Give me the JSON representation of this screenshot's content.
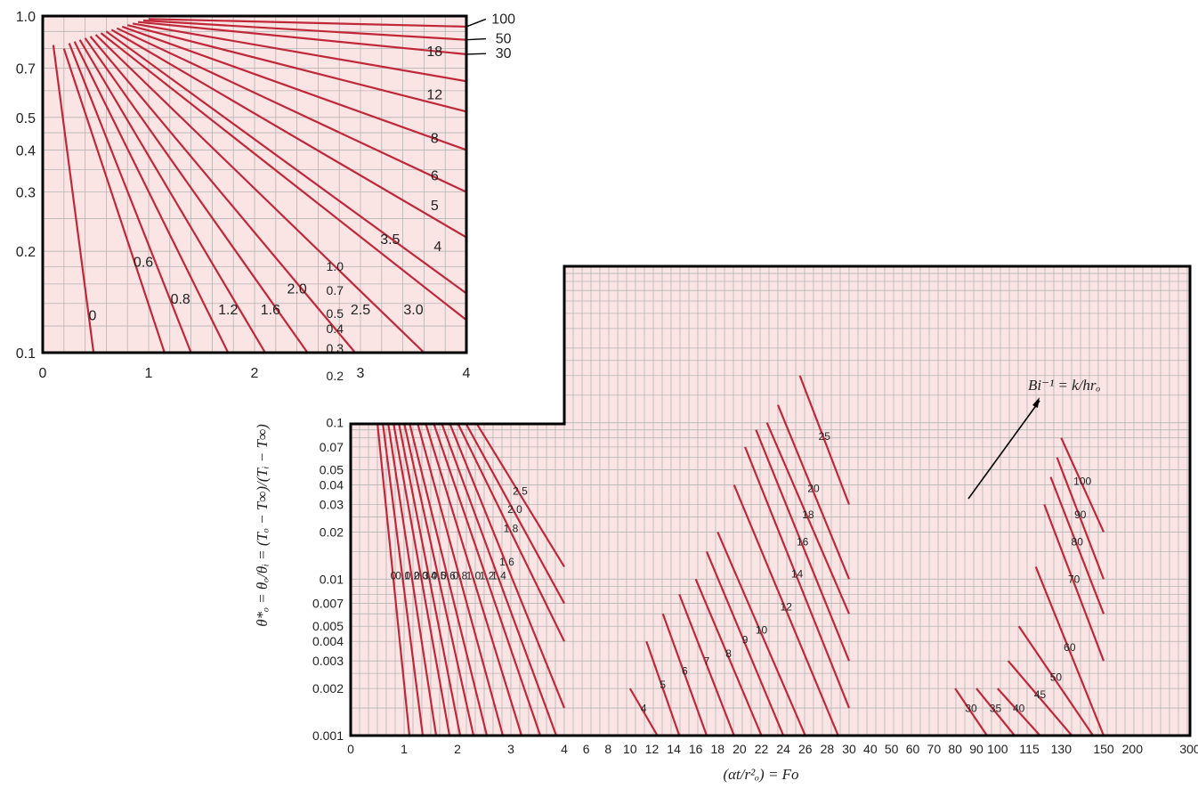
{
  "chart_data": [
    {
      "type": "line",
      "panel": "inset",
      "title": "",
      "xlabel": "",
      "ylabel": "",
      "xlim": [
        0,
        4
      ],
      "ylim": [
        0.1,
        1.0
      ],
      "yscale": "log",
      "x_ticks": [
        "0",
        "1",
        "2",
        "3",
        "4"
      ],
      "y_ticks": [
        "1.0",
        "0.7",
        "0.5",
        "0.4",
        "0.3",
        "0.2",
        "0.1"
      ],
      "y_tick_values": [
        1.0,
        0.7,
        0.5,
        0.4,
        0.3,
        0.2,
        0.1
      ],
      "grid": true,
      "background": "#fbe4e4",
      "line_color": "#c0283a",
      "series": [
        {
          "name": "0",
          "x": [
            0.1,
            0.48
          ],
          "y": [
            0.82,
            0.1
          ],
          "label_x": 0.47,
          "label_y": 0.125
        },
        {
          "name": "0.6",
          "x": [
            0.2,
            1.15
          ],
          "y": [
            0.8,
            0.1
          ],
          "label_x": 0.95,
          "label_y": 0.18
        },
        {
          "name": "0.8",
          "x": [
            0.25,
            1.4
          ],
          "y": [
            0.83,
            0.1
          ],
          "label_x": 1.3,
          "label_y": 0.14
        },
        {
          "name": "1.2",
          "x": [
            0.3,
            1.75
          ],
          "y": [
            0.84,
            0.1
          ],
          "label_x": 1.75,
          "label_y": 0.13
        },
        {
          "name": "1.6",
          "x": [
            0.35,
            2.1
          ],
          "y": [
            0.85,
            0.1
          ],
          "label_x": 2.15,
          "label_y": 0.13
        },
        {
          "name": "2.0",
          "x": [
            0.4,
            2.5
          ],
          "y": [
            0.86,
            0.1
          ],
          "label_x": 2.4,
          "label_y": 0.15
        },
        {
          "name": "2.5",
          "x": [
            0.45,
            2.95
          ],
          "y": [
            0.87,
            0.1
          ],
          "label_x": 3.0,
          "label_y": 0.13
        },
        {
          "name": "3.0",
          "x": [
            0.5,
            3.6
          ],
          "y": [
            0.88,
            0.1
          ],
          "label_x": 3.5,
          "label_y": 0.13
        },
        {
          "name": "3.5",
          "x": [
            0.55,
            4.0
          ],
          "y": [
            0.89,
            0.125
          ],
          "label_x": 3.28,
          "label_y": 0.21
        },
        {
          "name": "4",
          "x": [
            0.6,
            4.0
          ],
          "y": [
            0.9,
            0.15
          ],
          "label_x": 3.73,
          "label_y": 0.2
        },
        {
          "name": "5",
          "x": [
            0.65,
            4.0
          ],
          "y": [
            0.91,
            0.22
          ],
          "label_x": 3.7,
          "label_y": 0.265
        },
        {
          "name": "6",
          "x": [
            0.7,
            4.0
          ],
          "y": [
            0.92,
            0.3
          ],
          "label_x": 3.7,
          "label_y": 0.325
        },
        {
          "name": "8",
          "x": [
            0.75,
            4.0
          ],
          "y": [
            0.93,
            0.4
          ],
          "label_x": 3.7,
          "label_y": 0.42
        },
        {
          "name": "12",
          "x": [
            0.8,
            4.0
          ],
          "y": [
            0.94,
            0.52
          ],
          "label_x": 3.7,
          "label_y": 0.565
        },
        {
          "name": "18",
          "x": [
            0.85,
            4.0
          ],
          "y": [
            0.95,
            0.64
          ],
          "label_x": 3.7,
          "label_y": 0.76
        },
        {
          "name": "30",
          "x": [
            0.9,
            4.0
          ],
          "y": [
            0.96,
            0.77
          ],
          "label_x": 4.35,
          "label_y": 0.75
        },
        {
          "name": "50",
          "x": [
            0.95,
            4.0
          ],
          "y": [
            0.97,
            0.85
          ],
          "label_x": 4.35,
          "label_y": 0.83
        },
        {
          "name": "100",
          "x": [
            1.0,
            4.0
          ],
          "y": [
            0.98,
            0.93
          ],
          "label_x": 4.35,
          "label_y": 0.95
        }
      ]
    },
    {
      "type": "line",
      "panel": "main",
      "title": "",
      "xlabel": "(αt/r²ₒ) = Fo",
      "ylabel": "θ*ₒ = θₒ/θᵢ = (Tₒ − T∞)/(Tᵢ − T∞)",
      "xscale": "piecewise-linear",
      "yscale": "log",
      "ylim": [
        0.001,
        1.0
      ],
      "grid": true,
      "background": "#fbe4e4",
      "line_color": "#c0283a",
      "annotation": "Bi⁻¹ = k/hrₒ",
      "x_ticks": [
        "0",
        "1",
        "2",
        "3",
        "4",
        "6",
        "8",
        "10",
        "12",
        "14",
        "16",
        "18",
        "20",
        "22",
        "24",
        "26",
        "28",
        "30",
        "40",
        "50",
        "60",
        "70",
        "80",
        "90",
        "100",
        "115",
        "130",
        "150",
        "200",
        "300"
      ],
      "y_ticks": [
        "1.0",
        "0.7",
        "0.5",
        "0.4",
        "0.3",
        "0.2",
        "0.1",
        "0.07",
        "0.05",
        "0.04",
        "0.03",
        "0.02",
        "0.01",
        "0.007",
        "0.005",
        "0.004",
        "0.003",
        "0.002",
        "0.001"
      ],
      "y_tick_values": [
        1.0,
        0.7,
        0.5,
        0.4,
        0.3,
        0.2,
        0.1,
        0.07,
        0.05,
        0.04,
        0.03,
        0.02,
        0.01,
        0.007,
        0.005,
        0.004,
        0.003,
        0.002,
        0.001
      ],
      "series": [
        {
          "name": "0",
          "x": [
            0.5,
            1.1
          ],
          "y": [
            0.1,
            0.001
          ]
        },
        {
          "name": "0.1",
          "x": [
            0.6,
            1.35
          ],
          "y": [
            0.1,
            0.001
          ]
        },
        {
          "name": "0.2",
          "x": [
            0.7,
            1.6
          ],
          "y": [
            0.1,
            0.001
          ]
        },
        {
          "name": "0.3",
          "x": [
            0.8,
            1.85
          ],
          "y": [
            0.1,
            0.001
          ]
        },
        {
          "name": "0.4",
          "x": [
            0.9,
            2.05
          ],
          "y": [
            0.1,
            0.001
          ]
        },
        {
          "name": "0.5",
          "x": [
            1.0,
            2.3
          ],
          "y": [
            0.1,
            0.001
          ]
        },
        {
          "name": "0.6",
          "x": [
            1.1,
            2.55
          ],
          "y": [
            0.1,
            0.001
          ]
        },
        {
          "name": "0.8",
          "x": [
            1.25,
            2.85
          ],
          "y": [
            0.1,
            0.001
          ]
        },
        {
          "name": "1.0",
          "x": [
            1.4,
            3.2
          ],
          "y": [
            0.1,
            0.001
          ]
        },
        {
          "name": "1.2",
          "x": [
            1.55,
            3.55
          ],
          "y": [
            0.1,
            0.001
          ]
        },
        {
          "name": "1.4",
          "x": [
            1.7,
            3.85
          ],
          "y": [
            0.1,
            0.001
          ]
        },
        {
          "name": "1.6",
          "x": [
            1.85,
            4.0
          ],
          "y": [
            0.1,
            0.0015
          ]
        },
        {
          "name": "1.8",
          "x": [
            2.0,
            4.0
          ],
          "y": [
            0.1,
            0.004
          ]
        },
        {
          "name": "2.0",
          "x": [
            2.15,
            4.0
          ],
          "y": [
            0.1,
            0.007
          ]
        },
        {
          "name": "2.5",
          "x": [
            2.35,
            4.0
          ],
          "y": [
            0.1,
            0.012
          ]
        },
        {
          "name": "4",
          "x": [
            10.0,
            12.5
          ],
          "y": [
            0.002,
            0.001
          ]
        },
        {
          "name": "5",
          "x": [
            11.5,
            14.5
          ],
          "y": [
            0.004,
            0.001
          ]
        },
        {
          "name": "6",
          "x": [
            13.0,
            17.0
          ],
          "y": [
            0.006,
            0.001
          ]
        },
        {
          "name": "7",
          "x": [
            14.5,
            19.5
          ],
          "y": [
            0.008,
            0.001
          ]
        },
        {
          "name": "8",
          "x": [
            16.0,
            22.0
          ],
          "y": [
            0.01,
            0.001
          ]
        },
        {
          "name": "9",
          "x": [
            17.0,
            24.0
          ],
          "y": [
            0.015,
            0.001
          ]
        },
        {
          "name": "10",
          "x": [
            18.0,
            26.0
          ],
          "y": [
            0.02,
            0.001
          ]
        },
        {
          "name": "12",
          "x": [
            19.5,
            29.0
          ],
          "y": [
            0.04,
            0.001
          ]
        },
        {
          "name": "14",
          "x": [
            20.5,
            30.0
          ],
          "y": [
            0.07,
            0.0015
          ]
        },
        {
          "name": "16",
          "x": [
            21.5,
            30.0
          ],
          "y": [
            0.09,
            0.003
          ]
        },
        {
          "name": "18",
          "x": [
            22.5,
            30.0
          ],
          "y": [
            0.1,
            0.006
          ]
        },
        {
          "name": "20",
          "x": [
            23.5,
            30.0
          ],
          "y": [
            0.13,
            0.01
          ]
        },
        {
          "name": "25",
          "x": [
            25.5,
            30.0
          ],
          "y": [
            0.2,
            0.03
          ]
        },
        {
          "name": "30",
          "x": [
            80.0,
            95.0
          ],
          "y": [
            0.002,
            0.001
          ]
        },
        {
          "name": "35",
          "x": [
            90.0,
            108.0
          ],
          "y": [
            0.002,
            0.001
          ]
        },
        {
          "name": "40",
          "x": [
            100.0,
            120.0
          ],
          "y": [
            0.002,
            0.001
          ]
        },
        {
          "name": "45",
          "x": [
            105.0,
            135.0
          ],
          "y": [
            0.003,
            0.001
          ]
        },
        {
          "name": "50",
          "x": [
            110.0,
            145.0
          ],
          "y": [
            0.005,
            0.001
          ]
        },
        {
          "name": "60",
          "x": [
            118.0,
            150.0
          ],
          "y": [
            0.012,
            0.001
          ]
        },
        {
          "name": "70",
          "x": [
            122.0,
            150.0
          ],
          "y": [
            0.03,
            0.003
          ]
        },
        {
          "name": "80",
          "x": [
            125.0,
            150.0
          ],
          "y": [
            0.045,
            0.006
          ]
        },
        {
          "name": "90",
          "x": [
            128.0,
            150.0
          ],
          "y": [
            0.06,
            0.01
          ]
        },
        {
          "name": "100",
          "x": [
            130.0,
            150.0
          ],
          "y": [
            0.08,
            0.02
          ]
        }
      ]
    }
  ]
}
